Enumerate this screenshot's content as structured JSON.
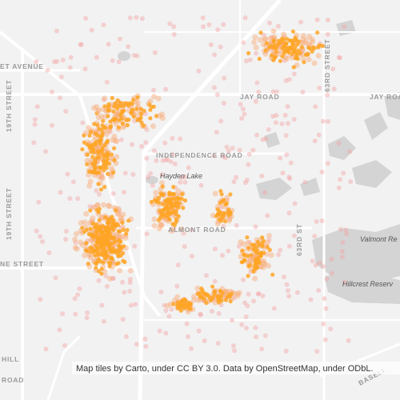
{
  "map": {
    "road_labels": [
      "ET AVENUE",
      "19TH STREET",
      "19TH STREET",
      "JAY ROAD",
      "JAY ROAD",
      "63RD STREET",
      "INDEPENDENCE ROAD",
      "ALMONT ROAD",
      "63RD ST",
      "NE STREET",
      "HILL",
      "ROAD",
      "BASELI"
    ],
    "place_labels": [
      "Hayden Lake",
      "Valmont Re",
      "Hillcrest Reserv"
    ],
    "attribution": "Map tiles by Carto, under CC BY 3.0. Data by OpenStreetMap, under ODbL."
  }
}
